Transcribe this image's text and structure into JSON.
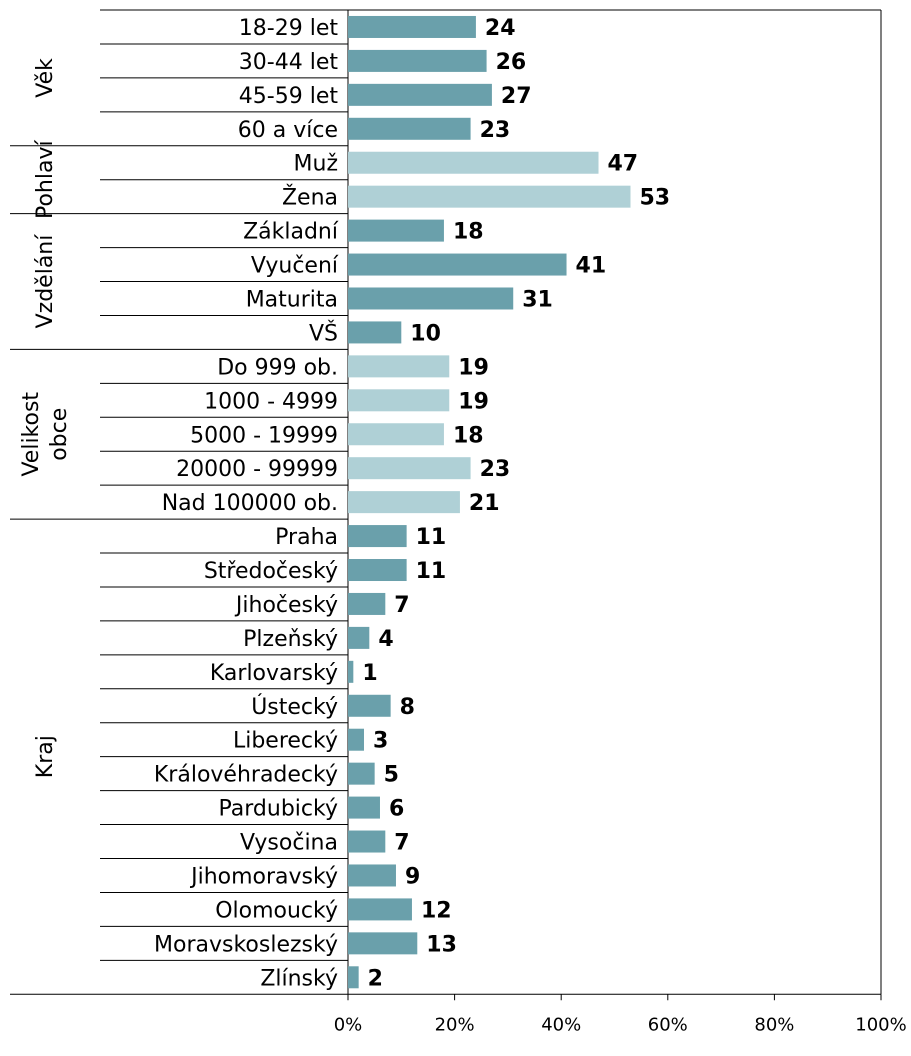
{
  "chart_data": {
    "type": "bar",
    "orientation": "horizontal",
    "xlim": [
      0,
      100
    ],
    "x_ticks": [
      "0%",
      "20%",
      "40%",
      "60%",
      "80%",
      "100%"
    ],
    "colors": {
      "dark": "#6aa0ab",
      "light": "#afd0d6"
    },
    "groups": [
      {
        "name": "Věk",
        "name_lines": [
          "Věk"
        ],
        "shade": "dark",
        "categories": [
          "18-29 let",
          "30-44 let",
          "45-59 let",
          "60 a více"
        ],
        "values": [
          24,
          26,
          27,
          23
        ]
      },
      {
        "name": "Pohlaví",
        "name_lines": [
          "Pohlaví"
        ],
        "shade": "light",
        "categories": [
          "Muž",
          "Žena"
        ],
        "values": [
          47,
          53
        ]
      },
      {
        "name": "Vzdělání",
        "name_lines": [
          "Vzdělání"
        ],
        "shade": "dark",
        "categories": [
          "Základní",
          "Vyučení",
          "Maturita",
          "VŠ"
        ],
        "values": [
          18,
          41,
          31,
          10
        ]
      },
      {
        "name": "Velikost obce",
        "name_lines": [
          "Velikost",
          "obce"
        ],
        "shade": "light",
        "categories": [
          "Do 999 ob.",
          "1000 - 4999",
          "5000 - 19999",
          "20000 - 99999",
          "Nad 100000 ob."
        ],
        "values": [
          19,
          19,
          18,
          23,
          21
        ]
      },
      {
        "name": "Kraj",
        "name_lines": [
          "Kraj"
        ],
        "shade": "dark",
        "categories": [
          "Praha",
          "Středočeský",
          "Jihočeský",
          "Plzeňský",
          "Karlovarský",
          "Ústecký",
          "Liberecký",
          "Královéhradecký",
          "Pardubický",
          "Vysočina",
          "Jihomoravský",
          "Olomoucký",
          "Moravskoslezský",
          "Zlínský"
        ],
        "values": [
          11,
          11,
          7,
          4,
          1,
          8,
          3,
          5,
          6,
          7,
          9,
          12,
          13,
          2
        ]
      }
    ]
  }
}
